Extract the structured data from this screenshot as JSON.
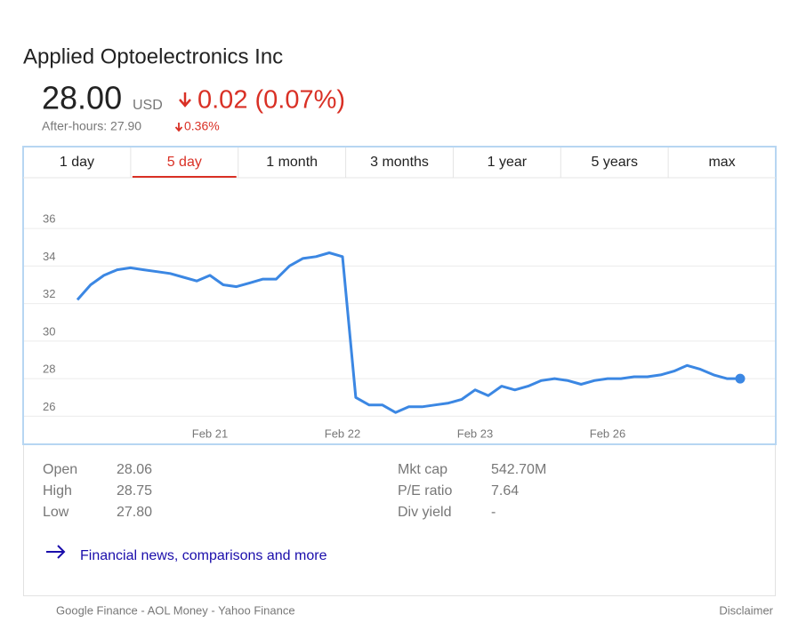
{
  "header": {
    "title": "Applied Optoelectronics Inc",
    "price": "28.00",
    "currency": "USD",
    "change": "0.02 (0.07%)",
    "after_hours": "After-hours: 27.90",
    "after_hours_change": "0.36%"
  },
  "tabs": [
    "1 day",
    "5 day",
    "1 month",
    "3 months",
    "1 year",
    "5 years",
    "max"
  ],
  "selected_tab": 1,
  "chart_data": {
    "type": "line",
    "categories": [
      null,
      null,
      null,
      null,
      null,
      null,
      null,
      null,
      null,
      null,
      "Feb 21",
      null,
      null,
      null,
      null,
      null,
      null,
      null,
      null,
      null,
      "Feb 22",
      null,
      null,
      null,
      null,
      null,
      null,
      null,
      null,
      null,
      "Feb 23",
      null,
      null,
      null,
      null,
      null,
      null,
      null,
      null,
      null,
      "Feb 26",
      null,
      null,
      null,
      null,
      null,
      null,
      null,
      null,
      null,
      null
    ],
    "series": [
      {
        "color": "#3b87e3",
        "values": [
          32.2,
          33.0,
          33.5,
          33.8,
          33.9,
          33.8,
          33.7,
          33.6,
          33.4,
          33.2,
          33.5,
          33.0,
          32.9,
          33.1,
          33.3,
          33.3,
          34.0,
          34.4,
          34.5,
          34.7,
          34.5,
          27.0,
          26.6,
          26.6,
          26.2,
          26.5,
          26.5,
          26.6,
          26.7,
          26.9,
          27.4,
          27.1,
          27.6,
          27.4,
          27.6,
          27.9,
          28.0,
          27.9,
          27.7,
          27.9,
          28.0,
          28.0,
          28.1,
          28.1,
          28.2,
          28.4,
          28.7,
          28.5,
          28.2,
          28.0,
          28.0
        ]
      }
    ],
    "ylim": [
      24.6,
      38.7
    ],
    "yticks": [
      26,
      28,
      30,
      32,
      34,
      36
    ],
    "grid": true
  },
  "stats": {
    "left": [
      [
        "Open",
        "28.06"
      ],
      [
        "High",
        "28.75"
      ],
      [
        "Low",
        "27.80"
      ]
    ],
    "right": [
      [
        "Mkt cap",
        "542.70M"
      ],
      [
        "P/E ratio",
        "7.64"
      ],
      [
        "Div yield",
        "-"
      ]
    ]
  },
  "link": "Financial news, comparisons and more",
  "footer": {
    "sources": "Google Finance - AOL Money - Yahoo Finance",
    "disclaimer": "Disclaimer"
  }
}
